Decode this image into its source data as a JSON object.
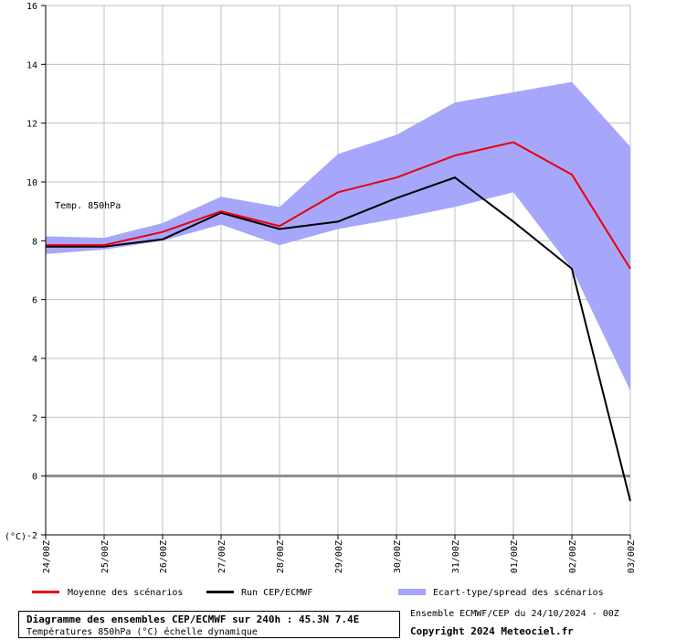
{
  "chart_data": {
    "type": "line",
    "x": [
      "24/00Z",
      "25/00Z",
      "26/00Z",
      "27/00Z",
      "28/00Z",
      "29/00Z",
      "30/00Z",
      "31/00Z",
      "01/00Z",
      "02/00Z",
      "03/00Z"
    ],
    "y_unit_label": "(°C)",
    "ylim": [
      -2,
      16
    ],
    "yticks": [
      -2,
      0,
      2,
      4,
      6,
      8,
      10,
      12,
      14,
      16
    ],
    "annotation": "Temp. 850hPa",
    "grid": true,
    "series": [
      {
        "name": "Moyenne des scénarios",
        "color": "#e8000b",
        "values": [
          7.85,
          7.85,
          8.3,
          9.0,
          8.5,
          9.65,
          10.15,
          10.9,
          11.35,
          10.25,
          7.05
        ]
      },
      {
        "name": "Run CEP/ECMWF",
        "color": "#000000",
        "values": [
          7.8,
          7.8,
          8.05,
          8.95,
          8.4,
          8.65,
          9.45,
          10.15,
          8.65,
          7.05,
          -0.85
        ]
      }
    ],
    "band": {
      "name": "Ecart-type/spread des scénarios",
      "color": "#a6a6fa",
      "upper": [
        8.15,
        8.1,
        8.6,
        9.5,
        9.15,
        10.95,
        11.6,
        12.7,
        13.05,
        13.4,
        11.2
      ],
      "lower": [
        7.55,
        7.7,
        8.0,
        8.55,
        7.85,
        8.4,
        8.75,
        9.15,
        9.65,
        7.05,
        2.9
      ]
    }
  },
  "legend": {
    "mean": "Moyenne des scénarios",
    "run": "Run CEP/ECMWF",
    "spread": "Ecart-type/spread des scénarios"
  },
  "footer": {
    "title": "Diagramme des ensembles CEP/ECMWF sur 240h : 45.3N 7.4E",
    "subtitle": "Températures 850hPa (°C) échelle dynamique",
    "run_info": "Ensemble ECMWF/CEP du 24/10/2024 - 00Z",
    "copyright": "Copyright 2024 Meteociel.fr"
  },
  "colors": {
    "mean": "#e8000b",
    "run": "#000000",
    "spread": "#a6a6fa",
    "grid": "#c0c0c0"
  }
}
